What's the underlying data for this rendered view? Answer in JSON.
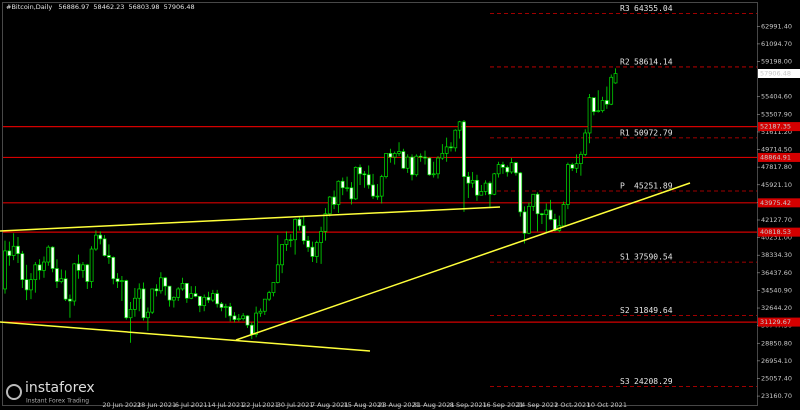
{
  "chart_data": {
    "type": "candlestick",
    "symbol": "#Bitcoin,Daily",
    "ylim": [
      22200,
      65500
    ],
    "yticks": [
      {
        "value": 23160.7,
        "label": "23160.70"
      },
      {
        "value": 25057.4,
        "label": "25057.40"
      },
      {
        "value": 26954.1,
        "label": "26954.10"
      },
      {
        "value": 28850.8,
        "label": "28850.80"
      },
      {
        "value": 30747.5,
        "label": "30747.50"
      },
      {
        "value": 32644.2,
        "label": "32644.20"
      },
      {
        "value": 34540.9,
        "label": "34540.90"
      },
      {
        "value": 36437.6,
        "label": "36437.60"
      },
      {
        "value": 38334.3,
        "label": "38334.30"
      },
      {
        "value": 40231,
        "label": "40231.00"
      },
      {
        "value": 42127.7,
        "label": "42127.70"
      },
      {
        "value": 44024.4,
        "label": "44024.40"
      },
      {
        "value": 45921.1,
        "label": "45921.10"
      },
      {
        "value": 47817.8,
        "label": "47817.80"
      },
      {
        "value": 49714.5,
        "label": "49714.50"
      },
      {
        "value": 51611.2,
        "label": "51611.20"
      },
      {
        "value": 53507.9,
        "label": "53507.90"
      },
      {
        "value": 55404.6,
        "label": "55404.60"
      },
      {
        "value": 59198,
        "label": "59198.00"
      },
      {
        "value": 61094.7,
        "label": "61094.70"
      },
      {
        "value": 62991.4,
        "label": "62991.40"
      }
    ],
    "categories": [
      null,
      null,
      null,
      null,
      null,
      null,
      null,
      null,
      null,
      null,
      null,
      null,
      null,
      null,
      null,
      null,
      null,
      null,
      null,
      null,
      null,
      null,
      null,
      null,
      null,
      null,
      null,
      "20 Jun 2021",
      null,
      null,
      null,
      null,
      null,
      null,
      null,
      "28 Jun 2021",
      null,
      null,
      null,
      null,
      null,
      null,
      null,
      "6 Jul 2021",
      null,
      null,
      null,
      null,
      null,
      null,
      null,
      "14 Jul 2021",
      null,
      null,
      null,
      null,
      null,
      null,
      null,
      "22 Jul 2021",
      null,
      null,
      null,
      null,
      null,
      null,
      null,
      "30 Jul 2021",
      null,
      null,
      null,
      null,
      null,
      null,
      null,
      "7 Aug 2021",
      null,
      null,
      null,
      null,
      null,
      null,
      null,
      "15 Aug 2021",
      null,
      null,
      null,
      null,
      null,
      null,
      null,
      "23 Aug 2021",
      null,
      null,
      null,
      null,
      null,
      null,
      null,
      "31 Aug 2021",
      null,
      null,
      null,
      null,
      null,
      null,
      null,
      "8 Sep 2021",
      null,
      null,
      null,
      null,
      null,
      null,
      null,
      "16 Sep 2021",
      null,
      null,
      null,
      null,
      null,
      null,
      null,
      "24 Sep 2021",
      null,
      null,
      null,
      null,
      null,
      null,
      null,
      "2 Oct 2021",
      null,
      null,
      null,
      null,
      null,
      null,
      null,
      "10 Oct 2021",
      null,
      null
    ],
    "candles": [
      [
        34700,
        39900,
        34200,
        38800
      ],
      [
        38800,
        39800,
        37200,
        38300
      ],
      [
        38300,
        40700,
        37800,
        39300
      ],
      [
        39300,
        40300,
        37500,
        38500
      ],
      [
        38500,
        38800,
        34800,
        35700
      ],
      [
        35700,
        37300,
        33500,
        34600
      ],
      [
        34600,
        36400,
        33600,
        35700
      ],
      [
        35700,
        37600,
        34300,
        37300
      ],
      [
        37300,
        37900,
        35700,
        36700
      ],
      [
        36700,
        38200,
        35900,
        37600
      ],
      [
        37600,
        39400,
        37200,
        39200
      ],
      [
        39200,
        39300,
        36500,
        36900
      ],
      [
        36900,
        37900,
        34800,
        35500
      ],
      [
        35500,
        36800,
        35300,
        35800
      ],
      [
        35800,
        36700,
        33400,
        33600
      ],
      [
        33600,
        34100,
        31600,
        33400
      ],
      [
        33400,
        37500,
        32900,
        37400
      ],
      [
        37400,
        38400,
        35800,
        36700
      ],
      [
        36700,
        37600,
        35900,
        37300
      ],
      [
        37300,
        37400,
        34700,
        35500
      ],
      [
        35500,
        39300,
        34800,
        39000
      ],
      [
        39000,
        41000,
        38800,
        40500
      ],
      [
        40500,
        40900,
        39500,
        40100
      ],
      [
        40100,
        40500,
        38200,
        38300
      ],
      [
        38300,
        39500,
        37400,
        38100
      ],
      [
        38100,
        38200,
        35200,
        35800
      ],
      [
        35800,
        36400,
        34800,
        35500
      ],
      [
        35500,
        36100,
        33400,
        35600
      ],
      [
        35600,
        35700,
        31400,
        31600
      ],
      [
        31600,
        33300,
        28900,
        32500
      ],
      [
        32500,
        34800,
        31700,
        33700
      ],
      [
        33700,
        35300,
        32300,
        34700
      ],
      [
        34700,
        35400,
        31300,
        31600
      ],
      [
        31600,
        32700,
        30200,
        32200
      ],
      [
        32200,
        34700,
        32000,
        34700
      ],
      [
        34700,
        35200,
        33900,
        34500
      ],
      [
        34500,
        36500,
        34200,
        35900
      ],
      [
        35900,
        36000,
        34000,
        35000
      ],
      [
        35000,
        35000,
        32800,
        33500
      ],
      [
        33500,
        33900,
        32700,
        33800
      ],
      [
        33800,
        34900,
        33400,
        34700
      ],
      [
        34700,
        35900,
        34500,
        35300
      ],
      [
        35300,
        35300,
        33200,
        33700
      ],
      [
        33700,
        35000,
        33600,
        34200
      ],
      [
        34200,
        35000,
        33800,
        33900
      ],
      [
        33900,
        33900,
        32200,
        32900
      ],
      [
        32900,
        34100,
        32300,
        33800
      ],
      [
        33800,
        34400,
        33200,
        33500
      ],
      [
        33500,
        34600,
        33300,
        34200
      ],
      [
        34200,
        34600,
        32700,
        33100
      ],
      [
        33100,
        33300,
        32300,
        32700
      ],
      [
        32700,
        33100,
        31600,
        32800
      ],
      [
        32800,
        33200,
        31200,
        31800
      ],
      [
        31800,
        32200,
        31100,
        31400
      ],
      [
        31400,
        32000,
        31200,
        31500
      ],
      [
        31500,
        32100,
        31300,
        31800
      ],
      [
        31800,
        31900,
        30500,
        30800
      ],
      [
        30800,
        31100,
        29300,
        29800
      ],
      [
        29800,
        32800,
        29500,
        32100
      ],
      [
        32100,
        32600,
        31700,
        32300
      ],
      [
        32300,
        33600,
        31900,
        33600
      ],
      [
        33600,
        34500,
        33400,
        34300
      ],
      [
        34300,
        35400,
        33900,
        35400
      ],
      [
        35400,
        40500,
        35300,
        37300
      ],
      [
        37300,
        39500,
        36400,
        39500
      ],
      [
        39500,
        40900,
        38800,
        40000
      ],
      [
        40000,
        40600,
        39200,
        40000
      ],
      [
        40000,
        42300,
        38400,
        42200
      ],
      [
        42200,
        42400,
        41000,
        41500
      ],
      [
        41500,
        42600,
        39500,
        39900
      ],
      [
        39900,
        40400,
        38700,
        39200
      ],
      [
        39200,
        39800,
        37600,
        38200
      ],
      [
        38200,
        39900,
        37500,
        39700
      ],
      [
        39700,
        41400,
        37400,
        40900
      ],
      [
        40900,
        43400,
        39900,
        42800
      ],
      [
        42800,
        44700,
        42500,
        44600
      ],
      [
        44600,
        45300,
        43300,
        43800
      ],
      [
        43800,
        46400,
        42900,
        46300
      ],
      [
        46300,
        46700,
        44800,
        45600
      ],
      [
        45600,
        46800,
        45200,
        45600
      ],
      [
        45600,
        46200,
        43800,
        44400
      ],
      [
        44400,
        47900,
        44300,
        47800
      ],
      [
        47800,
        48100,
        45900,
        47100
      ],
      [
        47100,
        47400,
        45600,
        47000
      ],
      [
        47000,
        48000,
        45500,
        45900
      ],
      [
        45900,
        47100,
        44400,
        44700
      ],
      [
        44700,
        46000,
        44300,
        44700
      ],
      [
        44700,
        47000,
        43900,
        46800
      ],
      [
        46800,
        49300,
        46600,
        49300
      ],
      [
        49300,
        49800,
        48300,
        48900
      ],
      [
        48900,
        49500,
        48100,
        49300
      ],
      [
        49300,
        50500,
        49000,
        49500
      ],
      [
        49500,
        49800,
        47600,
        47700
      ],
      [
        47700,
        49200,
        47200,
        48900
      ],
      [
        48900,
        49200,
        46400,
        47000
      ],
      [
        47000,
        49200,
        46800,
        49000
      ],
      [
        49000,
        49300,
        48400,
        48900
      ],
      [
        48900,
        49600,
        48100,
        48800
      ],
      [
        48800,
        48900,
        46900,
        47000
      ],
      [
        47000,
        48400,
        46700,
        47100
      ],
      [
        47100,
        49000,
        46600,
        48800
      ],
      [
        48800,
        50300,
        48600,
        49300
      ],
      [
        49300,
        51000,
        48400,
        50000
      ],
      [
        50000,
        50500,
        49500,
        49900
      ],
      [
        49900,
        51900,
        49500,
        51800
      ],
      [
        51800,
        52800,
        50900,
        52700
      ],
      [
        52700,
        52900,
        43000,
        46800
      ],
      [
        46800,
        47300,
        44500,
        46100
      ],
      [
        46100,
        47300,
        45600,
        46400
      ],
      [
        46400,
        47000,
        44200,
        44800
      ],
      [
        44800,
        45900,
        44800,
        45200
      ],
      [
        45200,
        46400,
        44800,
        46100
      ],
      [
        46100,
        46300,
        43400,
        44900
      ],
      [
        44900,
        47200,
        44800,
        47100
      ],
      [
        47100,
        48400,
        46700,
        48100
      ],
      [
        48100,
        48400,
        47100,
        47800
      ],
      [
        47800,
        48000,
        46800,
        47300
      ],
      [
        47300,
        48800,
        47100,
        48300
      ],
      [
        48300,
        48400,
        46900,
        47200
      ],
      [
        47200,
        47300,
        42500,
        43000
      ],
      [
        43000,
        43600,
        39600,
        40700
      ],
      [
        40700,
        44000,
        40600,
        43600
      ],
      [
        43600,
        44900,
        43100,
        44900
      ],
      [
        44900,
        45100,
        40900,
        42800
      ],
      [
        42800,
        42900,
        41700,
        42700
      ],
      [
        42700,
        43900,
        40800,
        43200
      ],
      [
        43200,
        44300,
        42100,
        42200
      ],
      [
        42200,
        42800,
        40900,
        41000
      ],
      [
        41000,
        42600,
        40800,
        41500
      ],
      [
        41500,
        44100,
        41400,
        43800
      ],
      [
        43800,
        48300,
        43300,
        48100
      ],
      [
        48100,
        48300,
        47400,
        47700
      ],
      [
        47700,
        49200,
        47200,
        48200
      ],
      [
        48200,
        49500,
        46900,
        49200
      ],
      [
        49200,
        51900,
        49000,
        51500
      ],
      [
        51500,
        55700,
        50400,
        55300
      ],
      [
        55300,
        55300,
        53400,
        53800
      ],
      [
        53800,
        56100,
        53700,
        53900
      ],
      [
        53900,
        55400,
        53700,
        55000
      ],
      [
        55000,
        56500,
        54100,
        54600
      ],
      [
        54600,
        57800,
        54500,
        57500
      ],
      [
        56886.97,
        58462.23,
        56803.98,
        57906.48
      ]
    ],
    "pivots": [
      {
        "name": "R3",
        "value": 64355.04
      },
      {
        "name": "R2",
        "value": 58614.14
      },
      {
        "name": "R1",
        "value": 50972.79
      },
      {
        "name": "P",
        "value": 45251.89
      },
      {
        "name": "S1",
        "value": 37590.54
      },
      {
        "name": "S2",
        "value": 31849.64
      },
      {
        "name": "S3",
        "value": 24208.29
      }
    ],
    "levels": [
      52187.35,
      48864.91,
      43975.42,
      40818.53,
      31129.67
    ],
    "bull_color": "#00e600",
    "level_color": "#d40000",
    "watermark": {
      "brand": "instaforex",
      "tagline": "Instant Forex Trading"
    }
  }
}
